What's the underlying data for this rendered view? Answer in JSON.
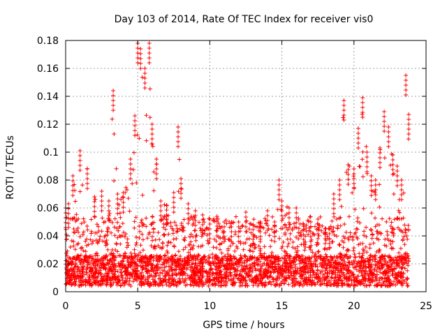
{
  "chart_data": {
    "type": "scatter",
    "title": "Day 103 of 2014, Rate Of TEC Index for receiver vis0",
    "xlabel": "GPS time / hours",
    "ylabel": "ROTI / TECUs",
    "xlim": [
      0,
      25
    ],
    "ylim": [
      0,
      0.18
    ],
    "x_ticks": [
      "0",
      "5",
      "10",
      "15",
      "20",
      "25"
    ],
    "y_ticks": [
      "0",
      "0.02",
      "0.04",
      "0.06",
      "0.08",
      "0.1",
      "0.12",
      "0.14",
      "0.16",
      "0.18"
    ],
    "grid": true,
    "marker": "+",
    "color": "#ff0000",
    "envelope": {
      "x": [
        0,
        0.2,
        0.5,
        1.0,
        1.5,
        2.0,
        2.5,
        3.0,
        3.3,
        3.6,
        4.0,
        4.5,
        4.8,
        5.0,
        5.2,
        5.5,
        5.8,
        6.0,
        6.3,
        6.6,
        7.0,
        7.5,
        7.8,
        8.0,
        8.5,
        9.0,
        9.5,
        10.0,
        10.5,
        11.0,
        11.5,
        12.0,
        12.5,
        13.0,
        13.5,
        14.0,
        14.5,
        14.8,
        15.0,
        15.5,
        16.0,
        16.5,
        17.0,
        17.5,
        18.0,
        18.3,
        18.6,
        19.0,
        19.3,
        19.6,
        20.0,
        20.3,
        20.6,
        20.9,
        21.2,
        21.5,
        21.8,
        22.1,
        22.4,
        22.7,
        23.0,
        23.3,
        23.6,
        23.8
      ],
      "peak": [
        0.06,
        0.063,
        0.083,
        0.101,
        0.088,
        0.068,
        0.072,
        0.065,
        0.144,
        0.07,
        0.071,
        0.095,
        0.126,
        0.178,
        0.174,
        0.16,
        0.178,
        0.12,
        0.095,
        0.065,
        0.062,
        0.071,
        0.118,
        0.081,
        0.063,
        0.058,
        0.055,
        0.052,
        0.054,
        0.05,
        0.05,
        0.05,
        0.057,
        0.048,
        0.05,
        0.058,
        0.05,
        0.08,
        0.065,
        0.06,
        0.06,
        0.048,
        0.05,
        0.052,
        0.045,
        0.045,
        0.07,
        0.08,
        0.137,
        0.091,
        0.088,
        0.117,
        0.139,
        0.1,
        0.083,
        0.08,
        0.103,
        0.129,
        0.118,
        0.098,
        0.09,
        0.08,
        0.155,
        0.127
      ]
    }
  }
}
